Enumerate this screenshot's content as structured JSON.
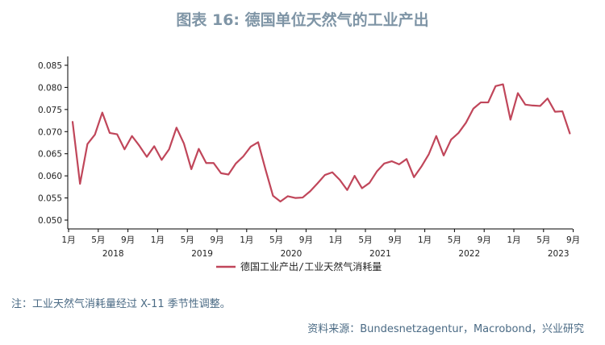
{
  "title": "图表 16: 德国单位天然气的工业产出",
  "note": "注：工业天然气消耗量经过 X-11 季节性调整。",
  "source": "资料来源：Bundesnetzagentur，Macrobond，兴业研究",
  "colors": {
    "line": "#c0465a",
    "title": "#7f95a6",
    "text": "#4a6a84"
  },
  "chart_data": {
    "type": "line",
    "title": "图表 16: 德国单位天然气的工业产出",
    "xlabel": "",
    "ylabel": "",
    "ylim": [
      0.048,
      0.087
    ],
    "yticks": [
      "0.050",
      "0.055",
      "0.060",
      "0.065",
      "0.070",
      "0.075",
      "0.080",
      "0.085"
    ],
    "xticks": [
      "1月",
      "5月",
      "9月",
      "1月",
      "5月",
      "9月",
      "1月",
      "5月",
      "9月",
      "1月",
      "5月",
      "9月",
      "1月",
      "5月",
      "9月",
      "1月",
      "5月",
      "9月"
    ],
    "year_labels": [
      "2018",
      "2019",
      "2020",
      "2021",
      "2022",
      "2023"
    ],
    "legend": "德国工业产出/工业天然气消耗量",
    "legend_position": "bottom",
    "grid": false,
    "x": [
      "2018-01",
      "2018-02",
      "2018-03",
      "2018-04",
      "2018-05",
      "2018-06",
      "2018-07",
      "2018-08",
      "2018-09",
      "2018-10",
      "2018-11",
      "2018-12",
      "2019-01",
      "2019-02",
      "2019-03",
      "2019-04",
      "2019-05",
      "2019-06",
      "2019-07",
      "2019-08",
      "2019-09",
      "2019-10",
      "2019-11",
      "2019-12",
      "2020-01",
      "2020-02",
      "2020-03",
      "2020-04",
      "2020-05",
      "2020-06",
      "2020-07",
      "2020-08",
      "2020-09",
      "2020-10",
      "2020-11",
      "2020-12",
      "2021-01",
      "2021-02",
      "2021-03",
      "2021-04",
      "2021-05",
      "2021-06",
      "2021-07",
      "2021-08",
      "2021-09",
      "2021-10",
      "2021-11",
      "2021-12",
      "2022-01",
      "2022-02",
      "2022-03",
      "2022-04",
      "2022-05",
      "2022-06",
      "2022-07",
      "2022-08",
      "2022-09",
      "2022-10",
      "2022-11",
      "2022-12",
      "2023-01",
      "2023-02",
      "2023-03",
      "2023-04",
      "2023-05",
      "2023-06",
      "2023-07",
      "2023-08"
    ],
    "series": [
      {
        "name": "德国工业产出/工业天然气消耗量",
        "values": [
          0.0722,
          0.0582,
          0.0672,
          0.0693,
          0.0743,
          0.0697,
          0.0694,
          0.066,
          0.069,
          0.0668,
          0.0643,
          0.0667,
          0.0636,
          0.066,
          0.0709,
          0.0673,
          0.0615,
          0.0661,
          0.0629,
          0.0629,
          0.0606,
          0.0603,
          0.0628,
          0.0644,
          0.0666,
          0.0676,
          0.0614,
          0.0555,
          0.0542,
          0.0554,
          0.055,
          0.0551,
          0.0565,
          0.0583,
          0.0602,
          0.0608,
          0.0591,
          0.0568,
          0.06,
          0.0572,
          0.0584,
          0.061,
          0.0628,
          0.0633,
          0.0626,
          0.0638,
          0.0597,
          0.0621,
          0.0649,
          0.069,
          0.0646,
          0.0682,
          0.0697,
          0.072,
          0.0752,
          0.0766,
          0.0766,
          0.0803,
          0.0807,
          0.0727,
          0.0787,
          0.0761,
          0.0759,
          0.0758,
          0.0775,
          0.0745,
          0.0746,
          0.0696
        ]
      }
    ]
  }
}
